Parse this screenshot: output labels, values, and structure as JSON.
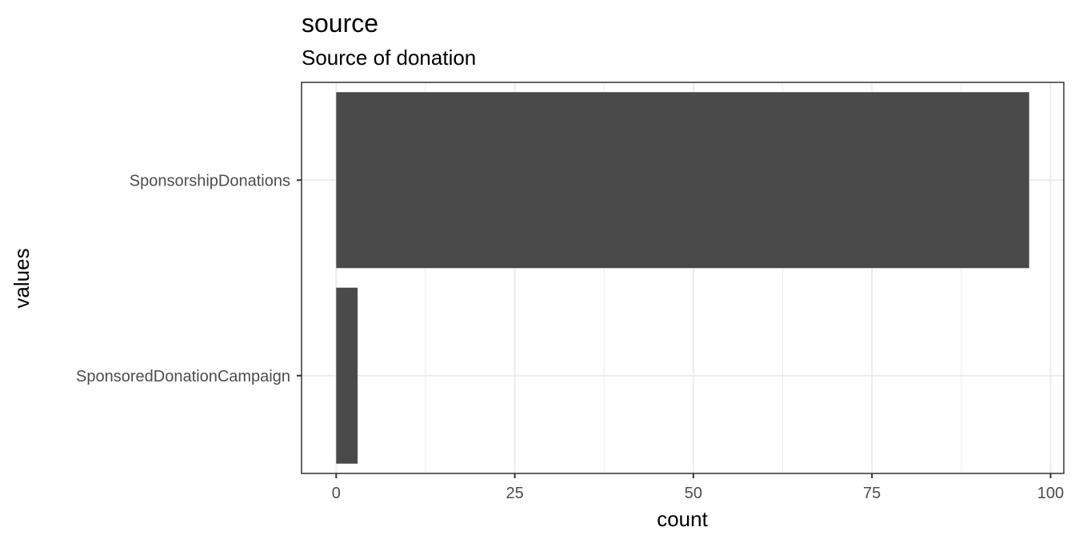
{
  "chart_data": {
    "type": "bar",
    "orientation": "horizontal",
    "title": "source",
    "subtitle": "Source of donation",
    "xlabel": "count",
    "ylabel": "values",
    "categories": [
      "SponsorshipDonations",
      "SponsoredDonationCampaign"
    ],
    "values": [
      97,
      3
    ],
    "xlim": [
      -4.85,
      101.85
    ],
    "xticks": [
      "0",
      "25",
      "50",
      "75",
      "100"
    ],
    "grid": true,
    "legend": "none",
    "bar_color": "#4a4a4a",
    "grid_major_color": "#ebebeb",
    "panel_border_color": "#333333"
  }
}
